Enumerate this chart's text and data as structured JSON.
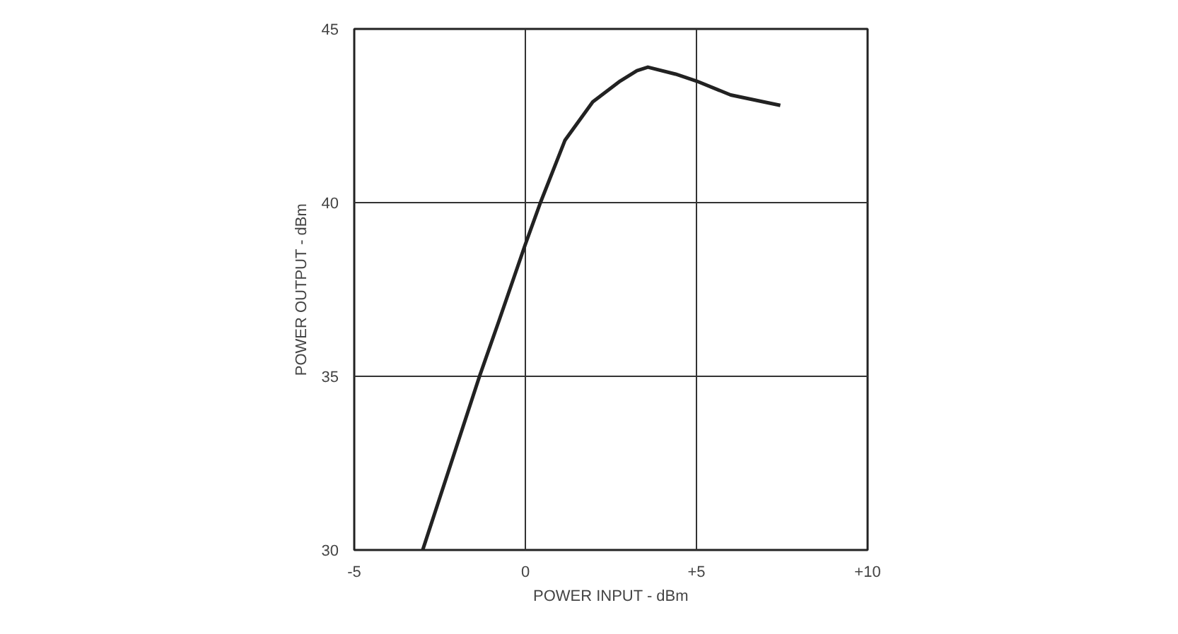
{
  "chart_data": {
    "type": "line",
    "xlabel": "POWER INPUT - dBm",
    "ylabel": "POWER OUTPUT - dBm",
    "x": [
      -3.0,
      -1.34,
      -0.77,
      0.0,
      0.44,
      1.16,
      1.97,
      2.77,
      3.26,
      3.58,
      4.39,
      5.0,
      6.0,
      7.45
    ],
    "series": [
      {
        "color": "#222222",
        "values": [
          30.0,
          35.0,
          36.6,
          38.8,
          40.0,
          41.8,
          42.9,
          43.5,
          43.8,
          43.9,
          43.7,
          43.5,
          43.1,
          42.8
        ]
      }
    ],
    "xlim": [
      -5,
      10
    ],
    "ylim": [
      30,
      45
    ],
    "xticks": [
      -5,
      0,
      {
        "value": 5,
        "label": "+5"
      },
      {
        "value": 10,
        "label": "+10"
      }
    ],
    "yticks": [
      30,
      35,
      40,
      45
    ],
    "grid": true,
    "marker": "none",
    "line_style": "solid"
  }
}
